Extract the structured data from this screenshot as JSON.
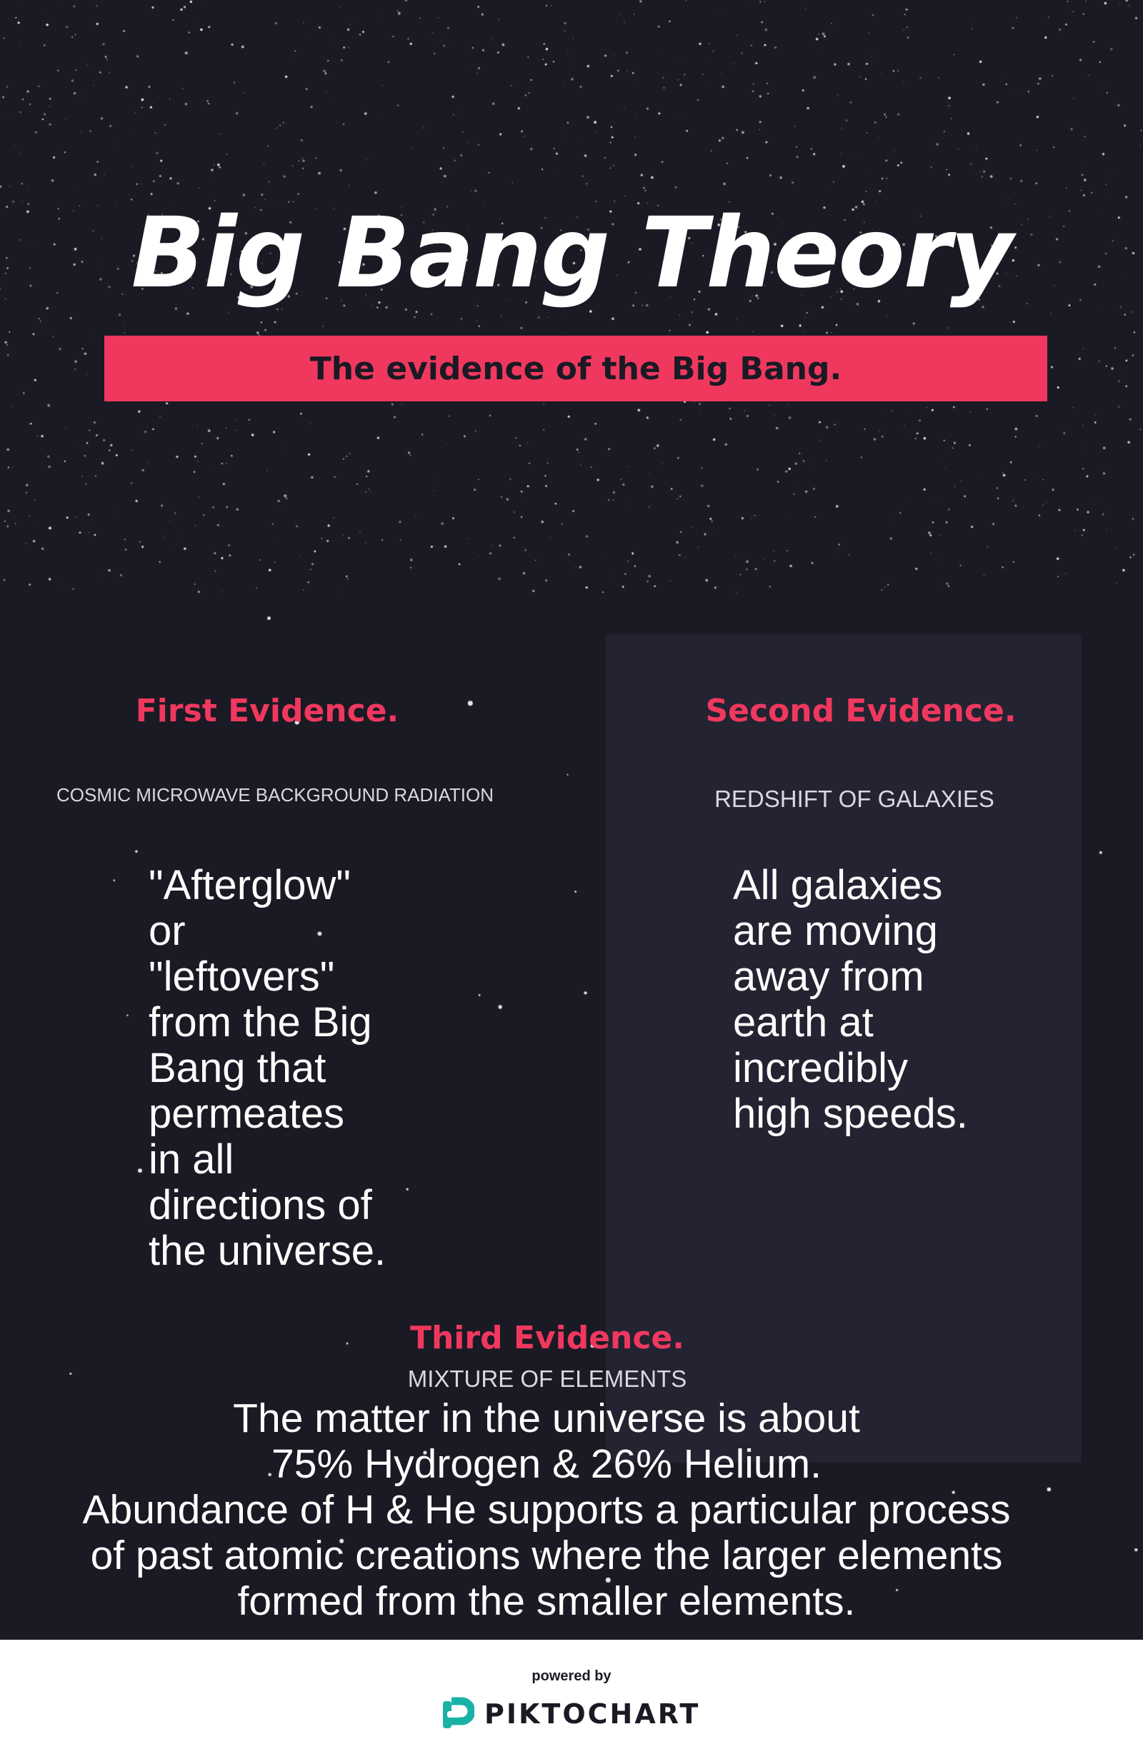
{
  "header": {
    "title": "Big Bang Theory",
    "subtitle": "The evidence of the Big Bang."
  },
  "evidence": [
    {
      "heading": "First Evidence.",
      "subheading": "COSMIC MICROWAVE BACKGROUND RADIATION",
      "body_lines": [
        "\"Afterglow\"",
        "or",
        "\"leftovers\"",
        "from the Big",
        "Bang that",
        "permeates",
        "in all",
        "directions of",
        "the universe."
      ]
    },
    {
      "heading": "Second Evidence.",
      "subheading": "REDSHIFT OF GALAXIES",
      "body_lines": [
        "All galaxies",
        "are moving",
        "away from",
        "earth at",
        "incredibly",
        "high speeds."
      ]
    },
    {
      "heading": "Third Evidence.",
      "subheading": "MIXTURE OF ELEMENTS",
      "body_lines": [
        "The matter in the universe is about",
        "75% Hydrogen & 26% Helium.",
        "Abundance of H & He supports a particular process",
        "of past atomic creations where the larger elements",
        "formed from the smaller elements."
      ]
    }
  ],
  "footer": {
    "powered_by": "powered by",
    "brand": "PIKTOCHART",
    "brand_icon": "piktochart-logo-icon"
  },
  "colors": {
    "background": "#1a1a24",
    "panel": "#232332",
    "accent": "#f0385f",
    "brand_teal": "#19b3a6"
  }
}
